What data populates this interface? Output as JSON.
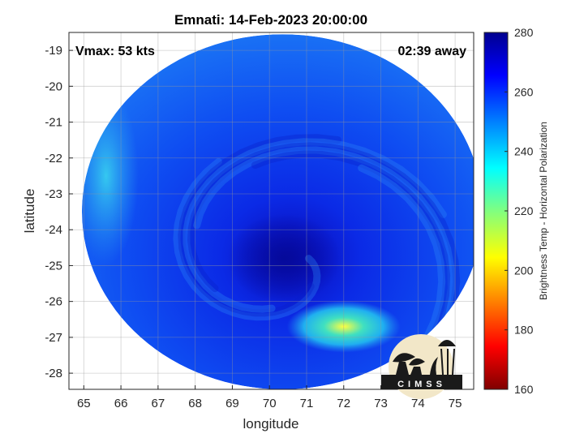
{
  "title": "Emnati: 14-Feb-2023 20:00:00",
  "vmax_label": "Vmax: 53 kts",
  "away_label": "02:39 away",
  "colormap": [
    "#00008f",
    "#0000ff",
    "#00ffff",
    "#ffff00",
    "#ff0000",
    "#800000"
  ],
  "chart_data": {
    "type": "heatmap",
    "title": "Emnati: 14-Feb-2023 20:00:00",
    "xlabel": "longitude",
    "ylabel": "latitude",
    "xlim": [
      64.6,
      75.5
    ],
    "ylim": [
      -28.45,
      -18.5
    ],
    "x_ticks": [
      65,
      66,
      67,
      68,
      69,
      70,
      71,
      72,
      73,
      74,
      75
    ],
    "y_ticks": [
      -19,
      -20,
      -21,
      -22,
      -23,
      -24,
      -25,
      -26,
      -27,
      -28
    ],
    "grid": true,
    "swath": {
      "center": [
        70.35,
        -23.5
      ],
      "radius_lon": 5.4,
      "radius_lat": 4.95
    },
    "colorbar": {
      "label": "Brightness Temp - Horizontal Polarization",
      "range": [
        160,
        280
      ],
      "ticks": [
        160,
        180,
        200,
        220,
        240,
        260,
        280
      ]
    },
    "features": [
      {
        "name": "eye",
        "lon": 70.4,
        "lat": -24.8,
        "value": 270
      },
      {
        "name": "warm-band",
        "lon": 72.0,
        "lat": -26.7,
        "value": 215
      },
      {
        "name": "western-edge",
        "lon": 65.6,
        "lat": -22.5,
        "value": 245
      }
    ]
  },
  "logo": {
    "text": "CIMSS"
  }
}
